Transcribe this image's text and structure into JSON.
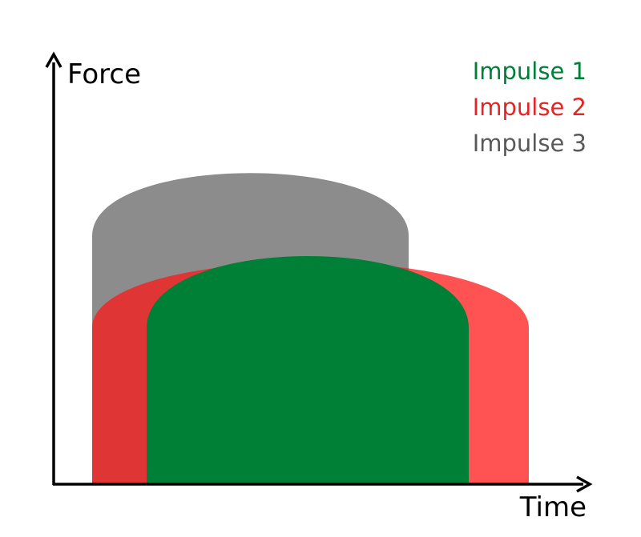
{
  "axes": {
    "y_label": "Force",
    "x_label": "Time"
  },
  "legend": [
    {
      "label": "Impulse 1",
      "color": "#007f36"
    },
    {
      "label": "Impulse 2",
      "color": "#e52424"
    },
    {
      "label": "Impulse 3",
      "color": "#595959"
    }
  ],
  "shapes": {
    "impulse_1": {
      "fill": "#007f36"
    },
    "impulse_2": {
      "fill": "#ff5252",
      "overlap_fill": "#e03535"
    },
    "impulse_3": {
      "fill": "#8c8c8c"
    }
  }
}
